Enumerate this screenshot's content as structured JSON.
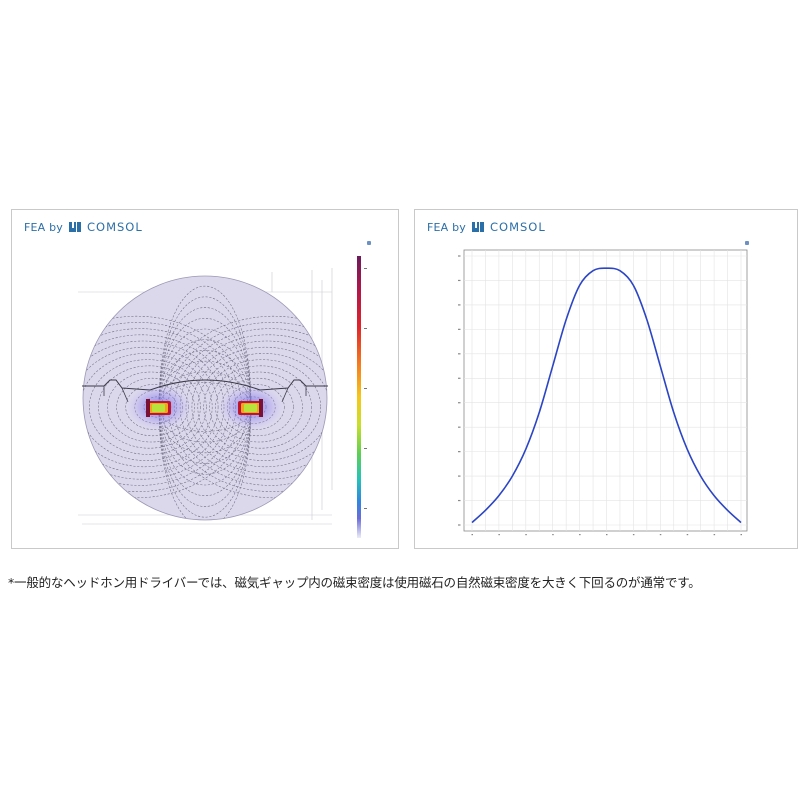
{
  "left_panel": {
    "brand": {
      "prefix": "FEA by",
      "name": "COMSOL",
      "logo_icon": "comsol-logo-icon"
    },
    "colorbar_colors": [
      "#6a1b5a",
      "#b0174a",
      "#e0242a",
      "#f47a1e",
      "#f5c71a",
      "#c7df2b",
      "#5fcf52",
      "#25c4b7",
      "#2f86e0",
      "#6b6cd8",
      "#c9c8ee",
      "#ececf8"
    ]
  },
  "right_panel": {
    "brand": {
      "prefix": "FEA by",
      "name": "COMSOL",
      "logo_icon": "comsol-logo-icon"
    }
  },
  "chart_data": {
    "type": "line",
    "title": "",
    "xlabel": "",
    "ylabel": "",
    "x": [
      0,
      0.5,
      1,
      1.5,
      2,
      2.5,
      3,
      3.5,
      4,
      4.5,
      5,
      5.5,
      6,
      6.5,
      7,
      7.5,
      8,
      8.5,
      9,
      9.5,
      10
    ],
    "series": [
      {
        "values": [
          0.02,
          0.12,
          0.24,
          0.4,
          0.62,
          0.92,
          1.3,
          1.68,
          1.96,
          2.08,
          2.1,
          2.08,
          1.96,
          1.68,
          1.3,
          0.92,
          0.62,
          0.4,
          0.24,
          0.12,
          0.02
        ],
        "color": "#2b45c4"
      }
    ],
    "xlim": [
      0,
      10
    ],
    "ylim": [
      0,
      2.2
    ],
    "grid": true,
    "line_color": "#2b45c4"
  },
  "caption": "*一般的なヘッドホン用ドライバーでは、磁気ギャップ内の磁束密度は使用磁石の自然磁束密度を大きく下回るのが通常です。"
}
